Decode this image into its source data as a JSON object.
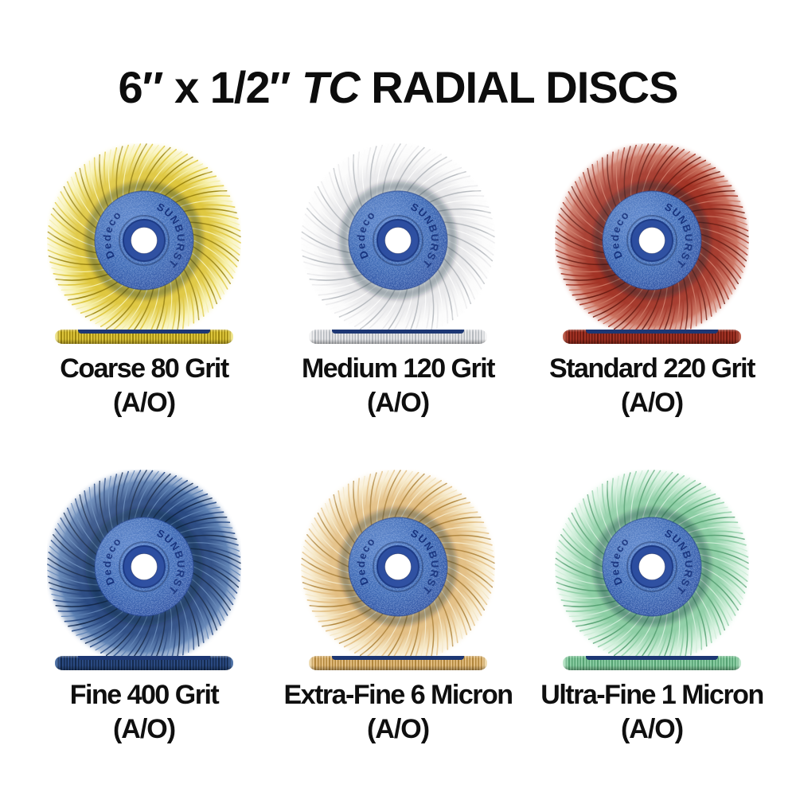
{
  "title": {
    "part1": "6″ x 1/2″ ",
    "part2": "TC",
    "part3": " RADIAL DISCS"
  },
  "hub": {
    "brand": "Dedeco",
    "series": "SUNBURST",
    "base_color": "#3e6ab5",
    "light_color": "#628bd0",
    "dark_color": "#27479a",
    "ring_color": "#2b4da0",
    "ring_edge_color": "#1c3a85",
    "text_color": "#16327d",
    "edge_band_color": "#1d3774"
  },
  "background_color": "#ffffff",
  "text_color": "#0d0d0d",
  "discs": [
    {
      "name": "coarse-80-grit",
      "label": "Coarse 80 Grit",
      "abrasive": "(A/O)",
      "color_name": "yellow",
      "bristle_mid": "#dec63c",
      "bristle_dark": "#9d860f",
      "bristle_light": "#f6efa6"
    },
    {
      "name": "medium-120-grit",
      "label": "Medium 120 Grit",
      "abrasive": "(A/O)",
      "color_name": "white",
      "bristle_mid": "#e8e8ea",
      "bristle_dark": "#b6babf",
      "bristle_light": "#fbfbfb"
    },
    {
      "name": "standard-220-grit",
      "label": "Standard 220 Grit",
      "abrasive": "(A/O)",
      "color_name": "red",
      "bristle_mid": "#a23325",
      "bristle_dark": "#6d1a10",
      "bristle_light": "#c96f5c"
    },
    {
      "name": "fine-400-grit",
      "label": "Fine 400 Grit",
      "abrasive": "(A/O)",
      "color_name": "navy",
      "bristle_mid": "#2a4a82",
      "bristle_dark": "#152a4e",
      "bristle_light": "#5b7fb2"
    },
    {
      "name": "extra-fine-6-micron",
      "label": "Extra-Fine 6 Micron",
      "abrasive": "(A/O)",
      "color_name": "tan",
      "bristle_mid": "#e2bd80",
      "bristle_dark": "#b1863d",
      "bristle_light": "#f5e6c2"
    },
    {
      "name": "ultra-fine-1-micron",
      "label": "Ultra-Fine 1 Micron",
      "abrasive": "(A/O)",
      "color_name": "green",
      "bristle_mid": "#8bcda3",
      "bristle_dark": "#56a273",
      "bristle_light": "#cbedd6"
    }
  ]
}
